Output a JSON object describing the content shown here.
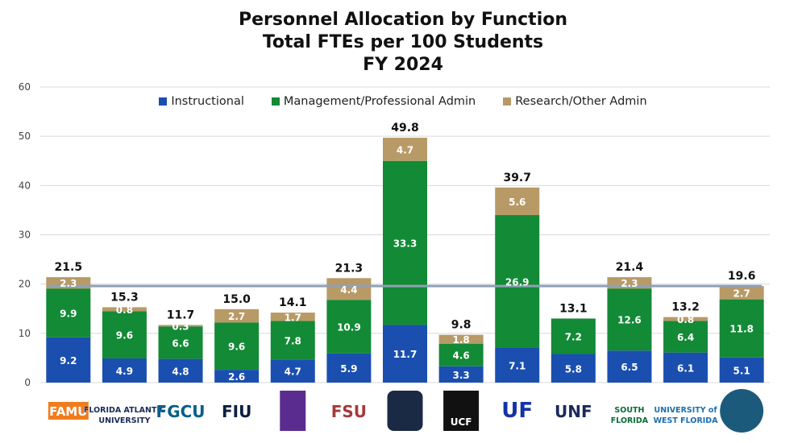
{
  "colors": {
    "instructional": "#1a4fb0",
    "management": "#138a36",
    "research": "#b89a67",
    "reference_line": "#8fa0b8"
  },
  "chart_data": {
    "type": "bar",
    "stacked": true,
    "title": [
      "Personnel Allocation by Function",
      "Total FTEs per 100 Students",
      "FY 2024"
    ],
    "xlabel": "",
    "ylabel": "",
    "ylim": [
      0,
      60
    ],
    "yticks": [
      0,
      10,
      20,
      30,
      40,
      50,
      60
    ],
    "grid": true,
    "legend_position": "top",
    "categories": [
      "FAMU",
      "FAU",
      "FGCU",
      "FIU",
      "FPU",
      "FSU",
      "NCF",
      "UCF",
      "UF",
      "UNF",
      "USF",
      "UWF",
      "SUS"
    ],
    "logo_text": [
      "FAMU",
      "FLORIDA ATLANTIC UNIVERSITY",
      "FGCU",
      "FIU",
      "",
      "FSU",
      "",
      "UCF",
      "UF",
      "UNF",
      "SOUTH FLORIDA",
      "UNIVERSITY of WEST FLORIDA",
      ""
    ],
    "series": [
      {
        "name": "Instructional",
        "values": [
          9.2,
          4.9,
          4.8,
          2.6,
          4.7,
          5.9,
          11.7,
          3.3,
          7.1,
          5.8,
          6.5,
          6.1,
          5.1
        ]
      },
      {
        "name": "Management/Professional Admin",
        "values": [
          9.9,
          9.6,
          6.6,
          9.6,
          7.8,
          10.9,
          33.3,
          4.6,
          26.9,
          7.2,
          12.6,
          6.4,
          11.8
        ]
      },
      {
        "name": "Research/Other Admin",
        "values": [
          2.3,
          0.8,
          0.3,
          2.7,
          1.7,
          4.4,
          4.7,
          1.8,
          5.6,
          null,
          2.3,
          0.8,
          2.7
        ]
      }
    ],
    "totals": [
      "21.5",
      "15.3",
      "11.7",
      "15.0",
      "14.1",
      "21.3",
      "49.8",
      "9.8",
      "39.7",
      "13.1",
      "21.4",
      "13.2",
      "19.6"
    ],
    "reference_line": 19.6
  }
}
